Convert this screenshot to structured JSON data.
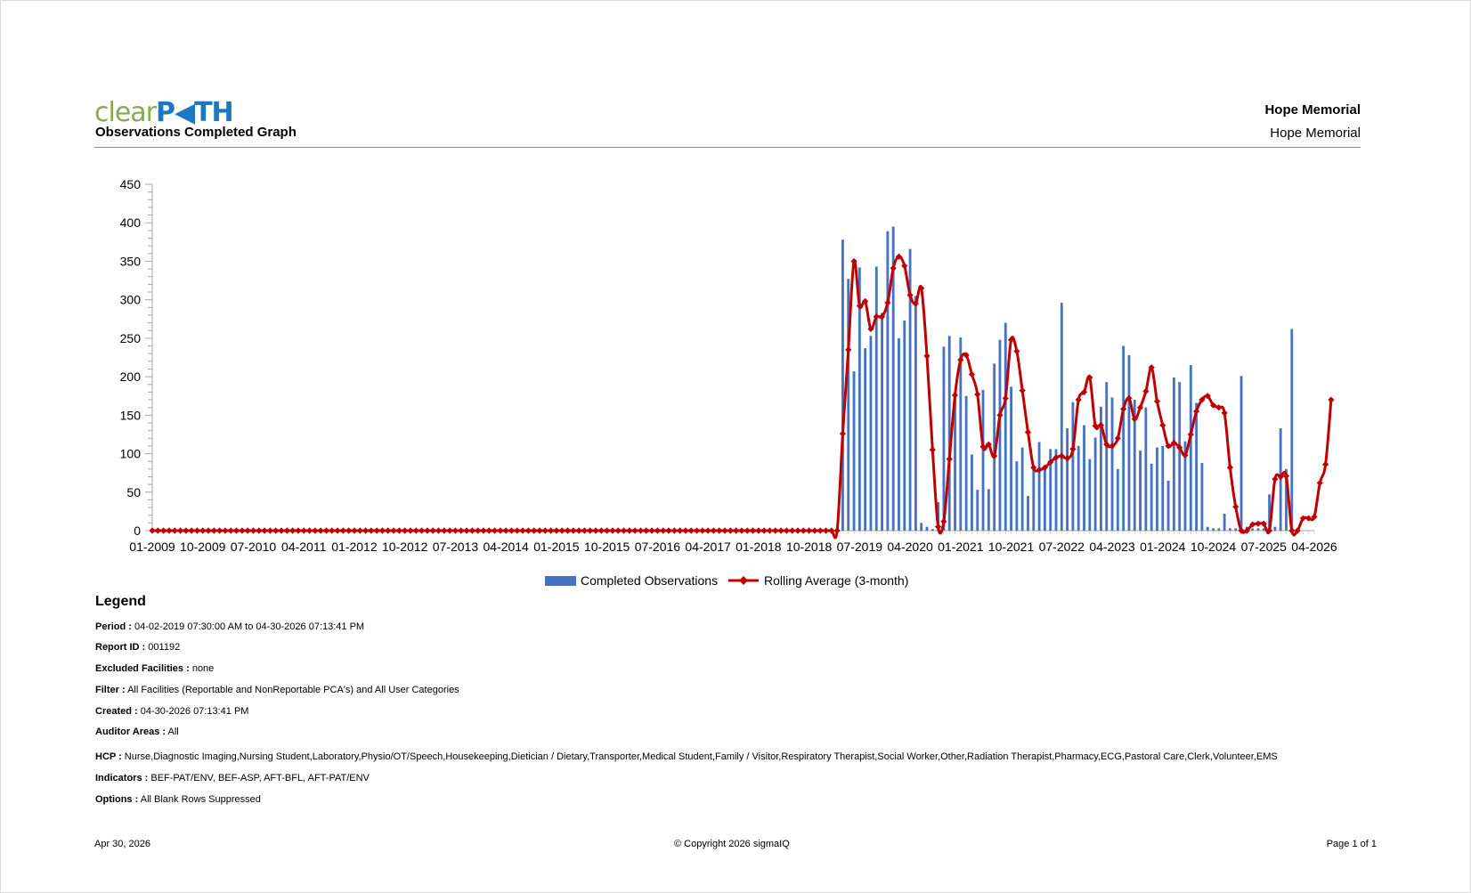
{
  "header": {
    "logo_text_a": "clear",
    "logo_text_b": "PATH",
    "logo_display_a": "clear",
    "logo_display_b": "P◀TH",
    "report_title": "Observations Completed Graph",
    "hospital_bold": "Hope Memorial",
    "hospital_plain": "Hope Memorial"
  },
  "colors": {
    "bar": "#4472c4",
    "line": "#c00000",
    "rule": "#8c8c8c"
  },
  "chart_data": {
    "type": "bar",
    "title": "",
    "xlabel": "",
    "ylabel": "",
    "ylim": [
      0,
      450
    ],
    "yticks": [
      0,
      50,
      100,
      150,
      200,
      250,
      300,
      350,
      400,
      450
    ],
    "x_tick_labels": [
      "01-2009",
      "10-2009",
      "07-2010",
      "04-2011",
      "01-2012",
      "10-2012",
      "07-2013",
      "04-2014",
      "01-2015",
      "10-2015",
      "07-2016",
      "04-2017",
      "01-2018",
      "10-2018",
      "07-2019",
      "04-2020",
      "01-2021",
      "10-2021",
      "07-2022",
      "04-2023",
      "01-2024",
      "10-2024",
      "07-2025",
      "04-2026"
    ],
    "x_start": "01-2009",
    "x_end": "04-2026",
    "legend_position": "bottom",
    "series": [
      {
        "name": "Completed Observations",
        "kind": "bar",
        "start": "04-2019",
        "values": [
          378,
          327,
          207,
          342,
          237,
          253,
          343,
          283,
          389,
          395,
          250,
          273,
          366,
          305,
          10,
          5,
          2,
          37,
          239,
          253,
          180,
          251,
          175,
          99,
          53,
          183,
          54,
          217,
          248,
          270,
          187,
          90,
          108,
          45,
          84,
          115,
          80,
          106,
          106,
          296,
          133,
          167,
          110,
          137,
          93,
          121,
          161,
          193,
          173,
          80,
          240,
          228,
          170,
          104,
          160,
          87,
          108,
          110,
          65,
          199,
          193,
          116,
          215,
          166,
          88,
          5,
          3,
          3,
          22,
          3,
          3,
          201,
          5,
          3,
          3,
          3,
          47,
          5,
          133,
          80,
          262
        ]
      },
      {
        "name": "Rolling Average (3-month)",
        "kind": "line",
        "start": "01-2009",
        "values": [
          0,
          0,
          0,
          0,
          0,
          0,
          0,
          0,
          0,
          0,
          0,
          0,
          0,
          0,
          0,
          0,
          0,
          0,
          0,
          0,
          0,
          0,
          0,
          0,
          0,
          0,
          0,
          0,
          0,
          0,
          0,
          0,
          0,
          0,
          0,
          0,
          0,
          0,
          0,
          0,
          0,
          0,
          0,
          0,
          0,
          0,
          0,
          0,
          0,
          0,
          0,
          0,
          0,
          0,
          0,
          0,
          0,
          0,
          0,
          0,
          0,
          0,
          0,
          0,
          0,
          0,
          0,
          0,
          0,
          0,
          0,
          0,
          0,
          0,
          0,
          0,
          0,
          0,
          0,
          0,
          0,
          0,
          0,
          0,
          0,
          0,
          0,
          0,
          0,
          0,
          0,
          0,
          0,
          0,
          0,
          0,
          0,
          0,
          0,
          0,
          0,
          0,
          0,
          0,
          0,
          0,
          0,
          0,
          0,
          0,
          0,
          0,
          0,
          0,
          0,
          0,
          0,
          0,
          0,
          0,
          0,
          0,
          0,
          126,
          235,
          350,
          292,
          298,
          262,
          278,
          278,
          296,
          341,
          356,
          344,
          306,
          295,
          315,
          227,
          105,
          5,
          12,
          93,
          176,
          222,
          228,
          203,
          177,
          109,
          112,
          97,
          150,
          172,
          248,
          233,
          182,
          128,
          82,
          79,
          82,
          89,
          95,
          97,
          94,
          106,
          170,
          180,
          199,
          136,
          137,
          112,
          110,
          120,
          158,
          172,
          145,
          160,
          181,
          212,
          168,
          137,
          110,
          114,
          108,
          98,
          125,
          155,
          170,
          175,
          163,
          160,
          153,
          82,
          31,
          0,
          0,
          8,
          9,
          9,
          0,
          67,
          70,
          71,
          0,
          0,
          16,
          16,
          18,
          62,
          86,
          170
        ]
      }
    ]
  },
  "legend": {
    "title": "Legend",
    "items": [
      {
        "label": "Period :",
        "value": "04-02-2019 07:30:00 AM to 04-30-2026 07:13:41 PM"
      },
      {
        "label": "Report ID :",
        "value": "001192"
      },
      {
        "label": "Excluded Facilities :",
        "value": "none"
      },
      {
        "label": "Filter :",
        "value": "All Facilities (Reportable and NonReportable PCA's) and All User Categories"
      },
      {
        "label": "Created :",
        "value": "04-30-2026 07:13:41 PM"
      },
      {
        "label": "Auditor Areas :",
        "value": "All"
      },
      {
        "label": "HCP :",
        "value": "Nurse,Diagnostic Imaging,Nursing Student,Laboratory,Physio/OT/Speech,Housekeeping,Dietician / Dietary,Transporter,Medical Student,Family / Visitor,Respiratory Therapist,Social Worker,Other,Radiation Therapist,Pharmacy,ECG,Pastoral Care,Clerk,Volunteer,EMS"
      },
      {
        "label": "Indicators :",
        "value": "BEF-PAT/ENV, BEF-ASP, AFT-BFL, AFT-PAT/ENV"
      },
      {
        "label": "Options :",
        "value": "All Blank Rows Suppressed"
      }
    ]
  },
  "footer": {
    "date": "Apr 30, 2026",
    "copyright": "© Copyright 2026 sigmaIQ",
    "page": "Page 1 of 1"
  }
}
